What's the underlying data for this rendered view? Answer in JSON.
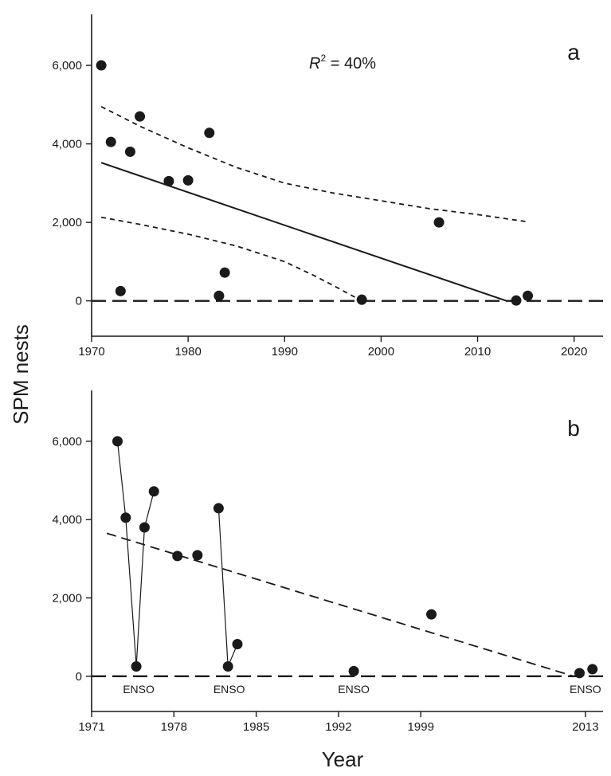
{
  "chart_data": [
    {
      "panel": "a",
      "type": "scatter",
      "ylabel": "SPM nests",
      "xlabel": "",
      "xlim": [
        1970,
        2023
      ],
      "ylim": [
        -900,
        7300
      ],
      "x_ticks": [
        1970,
        1980,
        1990,
        2000,
        2010,
        2020
      ],
      "x_tick_labels": [
        "1970",
        "1980",
        "1990",
        "2000",
        "2010",
        "2020"
      ],
      "y_ticks": [
        0,
        2000,
        4000,
        6000
      ],
      "y_tick_labels": [
        "0",
        "2,000",
        "4,000",
        "6,000"
      ],
      "annotation": {
        "r_symbol": "R",
        "superscript": "2",
        "text": " = 40%"
      },
      "points": [
        {
          "x": 1971,
          "y": 6000
        },
        {
          "x": 1972,
          "y": 4050
        },
        {
          "x": 1973,
          "y": 250
        },
        {
          "x": 1974,
          "y": 3800
        },
        {
          "x": 1975,
          "y": 4700
        },
        {
          "x": 1978,
          "y": 3050
        },
        {
          "x": 1980,
          "y": 3070
        },
        {
          "x": 1982.2,
          "y": 4280
        },
        {
          "x": 1983.2,
          "y": 130
        },
        {
          "x": 1983.8,
          "y": 720
        },
        {
          "x": 1998,
          "y": 30
        },
        {
          "x": 2006,
          "y": 2000
        },
        {
          "x": 2014,
          "y": 10
        },
        {
          "x": 2015.2,
          "y": 130
        }
      ],
      "regression": {
        "x": [
          1971,
          2013
        ],
        "y": [
          3520,
          0
        ]
      },
      "confidence_upper": {
        "x": [
          1971,
          1975,
          1980,
          1985,
          1990,
          1995,
          2000,
          2005,
          2010,
          2015
        ],
        "y": [
          4950,
          4450,
          3900,
          3400,
          3000,
          2750,
          2550,
          2350,
          2200,
          2020
        ]
      },
      "confidence_lower": {
        "x": [
          1971,
          1975,
          1980,
          1985,
          1990,
          1993,
          1995,
          1998
        ],
        "y": [
          2130,
          1950,
          1700,
          1400,
          1000,
          650,
          400,
          0
        ]
      },
      "reference_line_y": 0
    },
    {
      "panel": "b",
      "type": "line",
      "ylabel": "SPM nests",
      "xlabel": "Year",
      "xlim": [
        1971,
        2014.5
      ],
      "ylim": [
        -900,
        7300
      ],
      "x_ticks": [
        1971,
        1978,
        1985,
        1992,
        1999,
        2013
      ],
      "x_tick_labels": [
        "1971",
        "1978",
        "1985",
        "1992",
        "1999",
        "2013"
      ],
      "y_ticks": [
        0,
        2000,
        4000,
        6000
      ],
      "y_tick_labels": [
        "0",
        "2,000",
        "4,000",
        "6,000"
      ],
      "points": [
        {
          "x": 1973.2,
          "y": 6000
        },
        {
          "x": 1973.9,
          "y": 4050
        },
        {
          "x": 1974.8,
          "y": 250
        },
        {
          "x": 1975.5,
          "y": 3800
        },
        {
          "x": 1976.3,
          "y": 4720
        },
        {
          "x": 1978.3,
          "y": 3070
        },
        {
          "x": 1980.0,
          "y": 3090
        },
        {
          "x": 1981.8,
          "y": 4290
        },
        {
          "x": 1982.6,
          "y": 250
        },
        {
          "x": 1983.4,
          "y": 820
        },
        {
          "x": 1993.3,
          "y": 130
        },
        {
          "x": 1999.9,
          "y": 1580
        },
        {
          "x": 2012.5,
          "y": 80
        },
        {
          "x": 2013.6,
          "y": 180
        }
      ],
      "connected_segments": [
        [
          0,
          1,
          2,
          3,
          4
        ],
        [
          7,
          8,
          9
        ]
      ],
      "trend": {
        "x": [
          1972.3,
          2012.0
        ],
        "y": [
          3650,
          0
        ]
      },
      "reference_line_y": 0,
      "enso_labels": [
        {
          "x": 1975.0,
          "text": "ENSO"
        },
        {
          "x": 1982.7,
          "text": "ENSO"
        },
        {
          "x": 1993.3,
          "text": "ENSO"
        },
        {
          "x": 2013.0,
          "text": "ENSO"
        }
      ]
    }
  ]
}
